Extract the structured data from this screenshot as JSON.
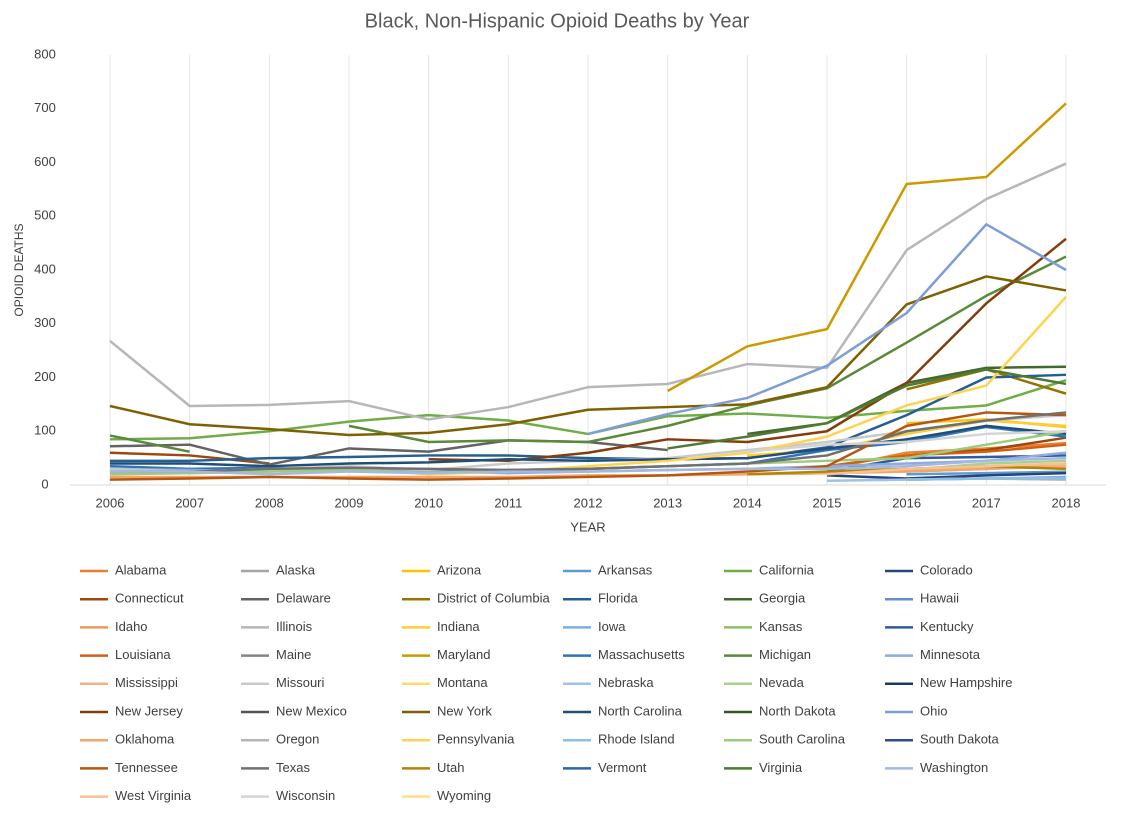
{
  "chart_data": {
    "type": "line",
    "title": "Black, Non-Hispanic Opioid Deaths by Year",
    "x_label": "YEAR",
    "y_label": "OPIOID DEATHS",
    "categories": [
      2006,
      2007,
      2008,
      2009,
      2010,
      2011,
      2012,
      2013,
      2014,
      2015,
      2016,
      2017,
      2018
    ],
    "ylim": [
      0,
      800
    ],
    "yticks": [
      0,
      100,
      200,
      300,
      400,
      500,
      600,
      700,
      800
    ],
    "grid": true,
    "series": [
      {
        "name": "Alabama",
        "color": "#ED7D31",
        "values": [
          null,
          null,
          null,
          null,
          null,
          null,
          null,
          null,
          null,
          30,
          60,
          68,
          78
        ]
      },
      {
        "name": "Alaska",
        "color": "#A5A5A5",
        "values": [
          null,
          null,
          null,
          null,
          null,
          null,
          null,
          null,
          null,
          null,
          null,
          null,
          null
        ]
      },
      {
        "name": "Arizona",
        "color": "#FFC000",
        "values": [
          null,
          null,
          null,
          null,
          null,
          null,
          null,
          null,
          null,
          null,
          115,
          122,
          108
        ]
      },
      {
        "name": "Arkansas",
        "color": "#5B9BD5",
        "values": [
          null,
          null,
          null,
          null,
          null,
          null,
          null,
          null,
          null,
          null,
          20,
          22,
          25
        ]
      },
      {
        "name": "California",
        "color": "#70AD47",
        "values": [
          85,
          87,
          100,
          118,
          130,
          120,
          95,
          128,
          133,
          125,
          138,
          148,
          195
        ]
      },
      {
        "name": "Colorado",
        "color": "#264478",
        "values": [
          null,
          null,
          null,
          null,
          null,
          null,
          null,
          null,
          null,
          18,
          12,
          18,
          22
        ]
      },
      {
        "name": "Connecticut",
        "color": "#9E480E",
        "values": [
          60,
          55,
          40,
          null,
          null,
          null,
          null,
          null,
          null,
          null,
          55,
          65,
          88
        ]
      },
      {
        "name": "Delaware",
        "color": "#636363",
        "values": [
          72,
          75,
          38,
          68,
          62,
          83,
          80,
          65,
          null,
          null,
          null,
          null,
          null
        ]
      },
      {
        "name": "District of Columbia",
        "color": "#997300",
        "values": [
          null,
          null,
          null,
          null,
          null,
          null,
          null,
          null,
          null,
          null,
          178,
          215,
          170
        ]
      },
      {
        "name": "Florida",
        "color": "#255E91",
        "values": [
          45,
          45,
          50,
          52,
          55,
          55,
          50,
          48,
          50,
          70,
          130,
          200,
          205
        ]
      },
      {
        "name": "Georgia",
        "color": "#43682B",
        "values": [
          null,
          null,
          null,
          null,
          null,
          null,
          null,
          null,
          95,
          115,
          190,
          218,
          220
        ]
      },
      {
        "name": "Hawaii",
        "color": "#698ED0",
        "values": [
          null,
          null,
          null,
          null,
          null,
          null,
          null,
          null,
          null,
          null,
          null,
          null,
          null
        ]
      },
      {
        "name": "Idaho",
        "color": "#F1975A",
        "values": [
          null,
          null,
          null,
          null,
          null,
          null,
          null,
          null,
          null,
          null,
          null,
          null,
          null
        ]
      },
      {
        "name": "Illinois",
        "color": "#B7B7B7",
        "values": [
          268,
          147,
          149,
          156,
          122,
          145,
          182,
          188,
          225,
          218,
          437,
          532,
          598
        ]
      },
      {
        "name": "Indiana",
        "color": "#FFCD33",
        "values": [
          null,
          null,
          null,
          null,
          null,
          null,
          null,
          null,
          55,
          65,
          95,
          120,
          110
        ]
      },
      {
        "name": "Iowa",
        "color": "#7CAFDD",
        "values": [
          null,
          null,
          null,
          null,
          null,
          null,
          null,
          null,
          null,
          null,
          10,
          12,
          15
        ]
      },
      {
        "name": "Kansas",
        "color": "#8CC168",
        "values": [
          null,
          null,
          null,
          null,
          null,
          null,
          null,
          null,
          null,
          null,
          25,
          30,
          35
        ]
      },
      {
        "name": "Kentucky",
        "color": "#335AA1",
        "values": [
          null,
          null,
          null,
          null,
          null,
          null,
          null,
          null,
          null,
          25,
          50,
          52,
          55
        ]
      },
      {
        "name": "Louisiana",
        "color": "#D26012",
        "values": [
          null,
          null,
          null,
          null,
          null,
          null,
          null,
          null,
          null,
          35,
          55,
          62,
          75
        ]
      },
      {
        "name": "Maine",
        "color": "#848484",
        "values": [
          null,
          null,
          null,
          null,
          null,
          null,
          null,
          null,
          null,
          null,
          null,
          null,
          null
        ]
      },
      {
        "name": "Maryland",
        "color": "#CC9A00",
        "values": [
          null,
          null,
          null,
          null,
          null,
          null,
          null,
          175,
          258,
          290,
          560,
          573,
          710
        ]
      },
      {
        "name": "Massachusetts",
        "color": "#2E75B6",
        "values": [
          35,
          30,
          32,
          28,
          25,
          28,
          30,
          35,
          40,
          65,
          80,
          108,
          90
        ]
      },
      {
        "name": "Michigan",
        "color": "#5A8A39",
        "values": [
          92,
          62,
          null,
          110,
          80,
          83,
          80,
          110,
          148,
          180,
          265,
          352,
          425
        ]
      },
      {
        "name": "Minnesota",
        "color": "#8FAADC",
        "values": [
          30,
          28,
          25,
          30,
          25,
          22,
          25,
          28,
          30,
          35,
          40,
          45,
          60
        ]
      },
      {
        "name": "Mississippi",
        "color": "#F4B183",
        "values": [
          null,
          null,
          null,
          null,
          null,
          null,
          null,
          null,
          20,
          22,
          25,
          30,
          35
        ]
      },
      {
        "name": "Missouri",
        "color": "#C9C9C9",
        "values": [
          30,
          25,
          30,
          35,
          28,
          40,
          45,
          50,
          65,
          80,
          100,
          120,
          130
        ]
      },
      {
        "name": "Montana",
        "color": "#FFD966",
        "values": [
          null,
          null,
          null,
          null,
          null,
          null,
          null,
          null,
          null,
          null,
          null,
          null,
          null
        ]
      },
      {
        "name": "Nebraska",
        "color": "#9DC3E6",
        "values": [
          null,
          null,
          null,
          null,
          null,
          null,
          null,
          null,
          null,
          8,
          10,
          12,
          12
        ]
      },
      {
        "name": "Nevada",
        "color": "#A9D18E",
        "values": [
          null,
          null,
          null,
          null,
          null,
          null,
          null,
          null,
          20,
          22,
          28,
          40,
          45
        ]
      },
      {
        "name": "New Hampshire",
        "color": "#203864",
        "values": [
          null,
          null,
          null,
          null,
          null,
          null,
          null,
          null,
          null,
          null,
          null,
          null,
          null
        ]
      },
      {
        "name": "New Jersey",
        "color": "#843C0C",
        "values": [
          null,
          null,
          null,
          null,
          48,
          45,
          60,
          85,
          80,
          100,
          190,
          338,
          458
        ]
      },
      {
        "name": "New Mexico",
        "color": "#525252",
        "values": [
          null,
          null,
          null,
          null,
          null,
          null,
          null,
          null,
          null,
          null,
          null,
          null,
          null
        ]
      },
      {
        "name": "New York",
        "color": "#7F6000",
        "values": [
          147,
          113,
          104,
          93,
          97,
          113,
          140,
          145,
          150,
          182,
          336,
          388,
          362
        ]
      },
      {
        "name": "North Carolina",
        "color": "#1F4E79",
        "values": [
          40,
          40,
          35,
          40,
          42,
          48,
          45,
          48,
          50,
          68,
          85,
          110,
          95
        ]
      },
      {
        "name": "North Dakota",
        "color": "#385723",
        "values": [
          null,
          null,
          null,
          null,
          null,
          null,
          null,
          null,
          null,
          null,
          null,
          null,
          null
        ]
      },
      {
        "name": "Ohio",
        "color": "#7D9ED6",
        "values": [
          null,
          null,
          null,
          null,
          null,
          null,
          95,
          132,
          162,
          222,
          320,
          485,
          400
        ]
      },
      {
        "name": "Oklahoma",
        "color": "#F4A46B",
        "values": [
          15,
          15,
          15,
          15,
          15,
          15,
          18,
          18,
          20,
          22,
          25,
          30,
          40
        ]
      },
      {
        "name": "Oregon",
        "color": "#B4B4B4",
        "values": [
          null,
          null,
          null,
          null,
          null,
          null,
          null,
          null,
          null,
          null,
          10,
          12,
          10
        ]
      },
      {
        "name": "Pennsylvania",
        "color": "#FFD34D",
        "values": [
          20,
          22,
          25,
          30,
          20,
          25,
          35,
          45,
          60,
          90,
          148,
          185,
          350
        ]
      },
      {
        "name": "Rhode Island",
        "color": "#8DBFE4",
        "values": [
          null,
          null,
          null,
          null,
          null,
          null,
          null,
          null,
          null,
          null,
          10,
          12,
          12
        ]
      },
      {
        "name": "South Carolina",
        "color": "#9BCC7B",
        "values": [
          20,
          22,
          25,
          28,
          22,
          28,
          30,
          35,
          40,
          45,
          50,
          75,
          100
        ]
      },
      {
        "name": "South Dakota",
        "color": "#2C4C8C",
        "values": [
          null,
          null,
          null,
          null,
          null,
          null,
          null,
          null,
          null,
          null,
          null,
          null,
          null
        ]
      },
      {
        "name": "Tennessee",
        "color": "#B5570F",
        "values": [
          10,
          12,
          15,
          12,
          10,
          12,
          15,
          18,
          25,
          35,
          110,
          135,
          130
        ]
      },
      {
        "name": "Texas",
        "color": "#707070",
        "values": [
          25,
          25,
          30,
          32,
          30,
          28,
          30,
          35,
          40,
          55,
          100,
          120,
          135
        ]
      },
      {
        "name": "Utah",
        "color": "#B38600",
        "values": [
          null,
          null,
          null,
          null,
          null,
          null,
          null,
          null,
          20,
          25,
          30,
          35,
          30
        ]
      },
      {
        "name": "Vermont",
        "color": "#2869A4",
        "values": [
          null,
          null,
          null,
          null,
          null,
          null,
          null,
          null,
          null,
          null,
          null,
          null,
          null
        ]
      },
      {
        "name": "Virginia",
        "color": "#4E7A32",
        "values": [
          null,
          null,
          null,
          null,
          null,
          null,
          null,
          68,
          90,
          115,
          185,
          215,
          188
        ]
      },
      {
        "name": "Washington",
        "color": "#A4B9E0",
        "values": [
          25,
          25,
          20,
          25,
          22,
          25,
          25,
          28,
          30,
          30,
          35,
          45,
          50
        ]
      },
      {
        "name": "West Virginia",
        "color": "#F6C099",
        "values": [
          null,
          null,
          null,
          null,
          null,
          null,
          null,
          null,
          null,
          20,
          30,
          35,
          40
        ]
      },
      {
        "name": "Wisconsin",
        "color": "#D4D4D4",
        "values": [
          null,
          null,
          null,
          null,
          null,
          null,
          null,
          null,
          62,
          75,
          80,
          95,
          100
        ]
      },
      {
        "name": "Wyoming",
        "color": "#FFE07F",
        "values": [
          null,
          null,
          null,
          null,
          null,
          null,
          null,
          null,
          null,
          null,
          null,
          null,
          null
        ]
      }
    ]
  }
}
